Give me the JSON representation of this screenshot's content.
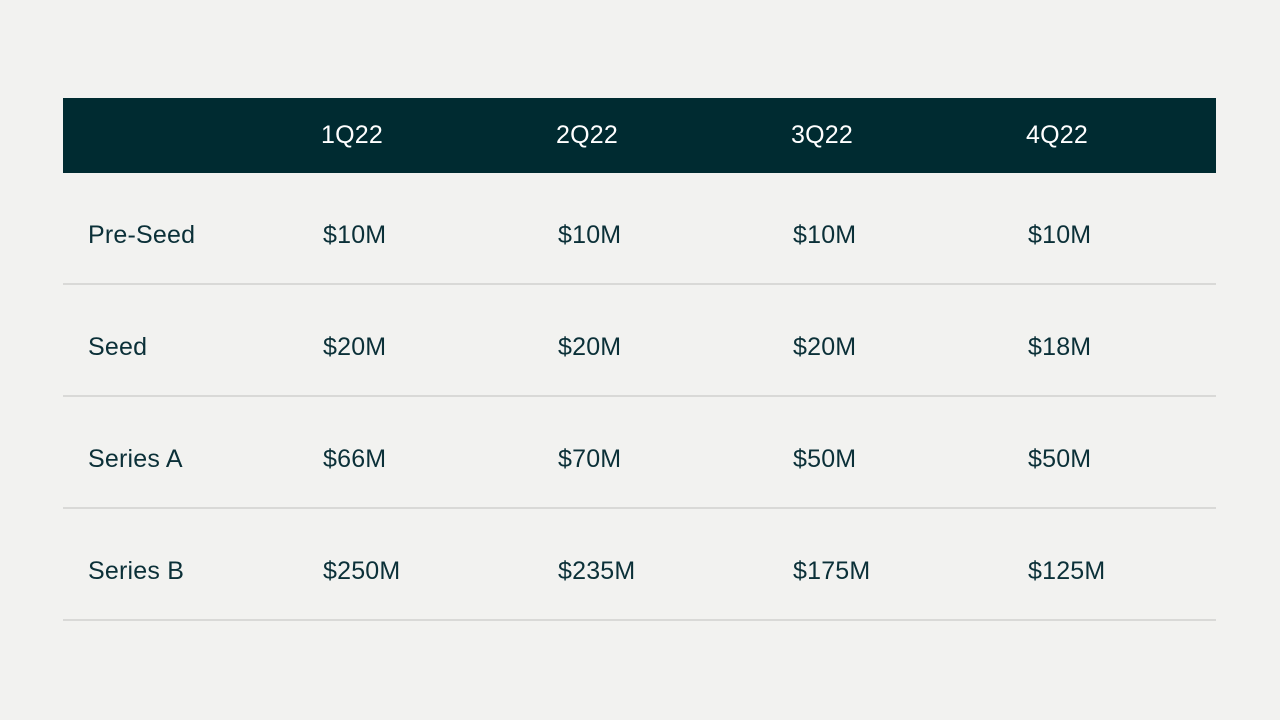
{
  "table": {
    "columns": [
      "",
      "1Q22",
      "2Q22",
      "3Q22",
      "4Q22"
    ],
    "rows": [
      {
        "label": "Pre-Seed",
        "values": [
          "$10M",
          "$10M",
          "$10M",
          "$10M"
        ]
      },
      {
        "label": "Seed",
        "values": [
          "$20M",
          "$20M",
          "$20M",
          "$18M"
        ]
      },
      {
        "label": "Series A",
        "values": [
          "$66M",
          "$70M",
          "$50M",
          "$50M"
        ]
      },
      {
        "label": "Series B",
        "values": [
          "$250M",
          "$235M",
          "$175M",
          "$125M"
        ]
      }
    ]
  },
  "colors": {
    "header_bg": "#002b31",
    "header_text": "#ffffff",
    "body_text": "#0b3038",
    "background": "#f2f2f0",
    "divider": "#d9d9d7"
  },
  "chart_data": {
    "type": "table",
    "columns": [
      "1Q22",
      "2Q22",
      "3Q22",
      "4Q22"
    ],
    "rows": [
      {
        "name": "Pre-Seed",
        "values": [
          10,
          10,
          10,
          10
        ]
      },
      {
        "name": "Seed",
        "values": [
          20,
          20,
          20,
          18
        ]
      },
      {
        "name": "Series A",
        "values": [
          66,
          70,
          50,
          50
        ]
      },
      {
        "name": "Series B",
        "values": [
          250,
          235,
          175,
          125
        ]
      }
    ],
    "unit": "$M"
  }
}
